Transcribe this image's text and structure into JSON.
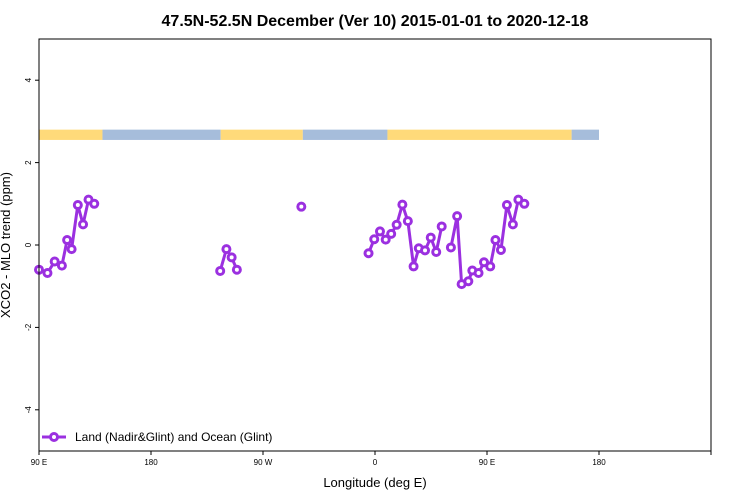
{
  "chart_data": {
    "type": "line",
    "title": "47.5N-52.5N December (Ver 10)   2015-01-01 to 2020-12-18",
    "xlabel": "Longitude (deg E)",
    "ylabel": "XCO2 - MLO trend (ppm)",
    "xlim": [
      -90,
      180
    ],
    "ylim": [
      -5,
      5
    ],
    "x_ticks": [
      {
        "value": -90,
        "label": "90 E"
      },
      {
        "value": -45,
        "label": "180"
      },
      {
        "value": 0,
        "label": "90 W"
      },
      {
        "value": 45,
        "label": "0"
      },
      {
        "value": 90,
        "label": "90 E"
      },
      {
        "value": 135,
        "label": "180"
      }
    ],
    "y_ticks": [
      {
        "value": -4,
        "label": "-4"
      },
      {
        "value": -2,
        "label": "-2"
      },
      {
        "value": 0,
        "label": "0"
      },
      {
        "value": 2,
        "label": "2"
      },
      {
        "value": 4,
        "label": "4"
      }
    ],
    "grid": false,
    "legend_position": "bottom-left",
    "land_ocean_bar": {
      "y_range": [
        2.55,
        2.8
      ],
      "land_color": "#FFDA7A",
      "ocean_color": "#A6BDDB",
      "segments": [
        {
          "type": "land",
          "from": -90,
          "to": -64.5
        },
        {
          "type": "ocean",
          "from": -64.5,
          "to": -17
        },
        {
          "type": "land",
          "from": -17,
          "to": 16
        },
        {
          "type": "ocean",
          "from": 16,
          "to": 50
        },
        {
          "type": "land",
          "from": 50,
          "to": 124
        },
        {
          "type": "ocean",
          "from": 124,
          "to": 135
        }
      ]
    },
    "series": [
      {
        "name": "Land (Nadir&Glint) and Ocean (Glint)",
        "color": "#9B30E0",
        "segments": [
          [
            [
              -90,
              -0.6
            ],
            [
              -86.6,
              -0.68
            ],
            [
              -83.7,
              -0.4
            ],
            [
              -80.8,
              -0.5
            ],
            [
              -78.7,
              0.12
            ],
            [
              -76.9,
              -0.1
            ],
            [
              -74.4,
              0.97
            ],
            [
              -72.3,
              0.5
            ],
            [
              -70.1,
              1.1
            ],
            [
              -67.8,
              1.0
            ]
          ],
          [
            [
              -17.2,
              -0.63
            ],
            [
              -14.7,
              -0.1
            ],
            [
              -12.6,
              -0.3
            ],
            [
              -10.5,
              -0.6
            ]
          ],
          [
            [
              15.4,
              0.93
            ]
          ],
          [
            [
              42.4,
              -0.2
            ],
            [
              44.7,
              0.14
            ],
            [
              47.0,
              0.33
            ],
            [
              49.3,
              0.13
            ],
            [
              51.5,
              0.27
            ],
            [
              53.7,
              0.49
            ],
            [
              56.0,
              0.98
            ],
            [
              58.2,
              0.58
            ],
            [
              60.5,
              -0.52
            ],
            [
              62.6,
              -0.08
            ],
            [
              65.1,
              -0.13
            ],
            [
              67.4,
              0.18
            ],
            [
              69.6,
              -0.17
            ],
            [
              71.8,
              0.45
            ]
          ],
          [
            [
              75.5,
              -0.06
            ],
            [
              78.0,
              0.7
            ],
            [
              79.8,
              -0.95
            ],
            [
              82.5,
              -0.88
            ],
            [
              84.1,
              -0.62
            ],
            [
              86.6,
              -0.68
            ],
            [
              88.8,
              -0.42
            ],
            [
              91.3,
              -0.52
            ],
            [
              93.4,
              0.12
            ],
            [
              95.6,
              -0.12
            ],
            [
              98.0,
              0.97
            ],
            [
              100.4,
              0.5
            ],
            [
              102.6,
              1.1
            ],
            [
              105.0,
              1.0
            ]
          ]
        ]
      }
    ]
  }
}
